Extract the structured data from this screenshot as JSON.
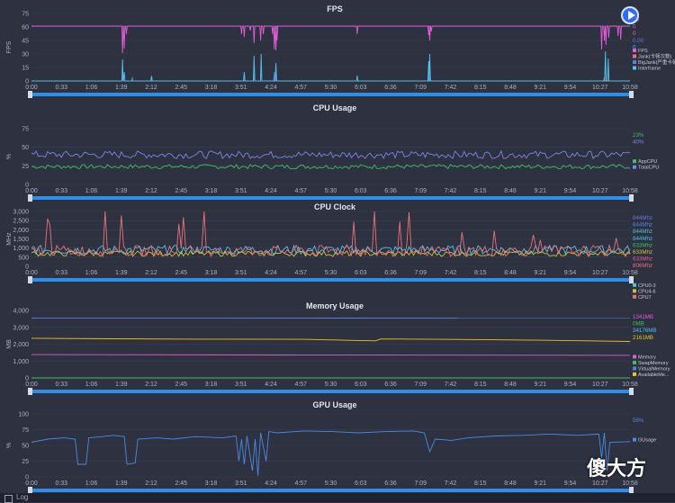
{
  "time_ticks": [
    "0:00",
    "0:33",
    "1:06",
    "1:39",
    "2:12",
    "2:45",
    "3:18",
    "3:51",
    "4:24",
    "4:57",
    "5:30",
    "6:03",
    "6:36",
    "7:09",
    "7:42",
    "8:15",
    "8:48",
    "9:21",
    "9:54",
    "10:27",
    "10:58"
  ],
  "footer": {
    "label": "Log"
  },
  "watermark": {
    "text": "傻大方"
  },
  "controls": {
    "play_icon": "play-icon"
  },
  "chart_data": [
    {
      "type": "line",
      "title": "FPS",
      "ylabel": "FPS",
      "ylim": [
        0,
        75
      ],
      "yticks": [
        0,
        15,
        30,
        45,
        60,
        75
      ],
      "legend_position": "right",
      "current_values": [
        {
          "text": "60",
          "color": "#e05cd6"
        },
        {
          "text": "0",
          "color": "#e05cd6"
        },
        {
          "text": "0",
          "color": "#e8737b"
        },
        {
          "text": "0.00",
          "color": "#5b7fe0"
        },
        {
          "text": "0",
          "color": "#4fc1e9"
        }
      ],
      "series": [
        {
          "name": "FPS",
          "color": "#e05cd6",
          "baseline": 61,
          "dips": [
            [
              1.67,
              31
            ],
            [
              1.7,
              36
            ],
            [
              1.74,
              52
            ],
            [
              3.85,
              52
            ],
            [
              3.9,
              49
            ],
            [
              4.01,
              56
            ],
            [
              4.08,
              42
            ],
            [
              4.2,
              45
            ],
            [
              4.25,
              52
            ],
            [
              4.42,
              52
            ],
            [
              4.45,
              35
            ],
            [
              4.48,
              34
            ],
            [
              4.5,
              45
            ],
            [
              5.97,
              52
            ],
            [
              7.28,
              51
            ],
            [
              7.3,
              45
            ],
            [
              7.33,
              55
            ],
            [
              10.45,
              35
            ],
            [
              10.5,
              45
            ],
            [
              10.53,
              40
            ],
            [
              10.58,
              48
            ],
            [
              10.75,
              50
            ],
            [
              10.8,
              46
            ]
          ]
        },
        {
          "name": "Jank(卡顿次数)",
          "color": "#e8737b",
          "baseline": 0,
          "spikes": [
            [
              1.67,
              4
            ],
            [
              4.08,
              3
            ],
            [
              4.45,
              3
            ],
            [
              7.3,
              3
            ],
            [
              10.5,
              4
            ]
          ]
        },
        {
          "name": "BigJank(严重卡顿)",
          "color": "#5b7fe0",
          "baseline": 0,
          "spikes": [
            [
              1.67,
              14
            ],
            [
              1.85,
              4
            ],
            [
              2.2,
              6
            ],
            [
              3.9,
              8
            ],
            [
              4.08,
              16
            ],
            [
              4.21,
              14
            ],
            [
              4.45,
              10
            ],
            [
              4.48,
              12
            ],
            [
              7.3,
              16
            ],
            [
              7.28,
              12
            ],
            [
              10.52,
              28
            ],
            [
              10.57,
              20
            ]
          ]
        },
        {
          "name": "Interframe",
          "color": "#4fc1e9",
          "baseline": 0,
          "spikes": [
            [
              1.67,
              24
            ],
            [
              1.7,
              10
            ],
            [
              2.2,
              5
            ],
            [
              3.9,
              10
            ],
            [
              4.08,
              28
            ],
            [
              4.21,
              30
            ],
            [
              4.48,
              20
            ],
            [
              5.97,
              6
            ],
            [
              7.3,
              30
            ],
            [
              7.28,
              22
            ],
            [
              10.52,
              33
            ],
            [
              10.57,
              25
            ]
          ]
        }
      ]
    },
    {
      "type": "line",
      "title": "CPU Usage",
      "ylabel": "%",
      "ylim": [
        0,
        75
      ],
      "yticks": [
        0,
        25,
        50,
        75
      ],
      "legend_position": "right",
      "current_values": [
        {
          "text": "23%",
          "color": "#3fbf5f"
        },
        {
          "text": "40%",
          "color": "#7c84e6"
        }
      ],
      "series": [
        {
          "name": "AppCPU",
          "color": "#3fbf5f",
          "baseline": 24,
          "noise": 3
        },
        {
          "name": "TotalCPU",
          "color": "#7c84e6",
          "baseline": 40,
          "noise": 5
        }
      ]
    },
    {
      "type": "line",
      "title": "CPU Clock",
      "ylabel": "MHz",
      "ylim": [
        0,
        3000
      ],
      "yticks": [
        0,
        500,
        1000,
        1500,
        2000,
        2500,
        3000
      ],
      "legend_position": "right",
      "current_values": [
        {
          "text": "844Mhz",
          "color": "#5b7fe0"
        },
        {
          "text": "844Mhz",
          "color": "#5b7fe0"
        },
        {
          "text": "844Mhz",
          "color": "#4fc1e9"
        },
        {
          "text": "844Mhz",
          "color": "#4fc1e9"
        },
        {
          "text": "633Mhz",
          "color": "#3fbf5f"
        },
        {
          "text": "633Mhz",
          "color": "#d0c040"
        },
        {
          "text": "633Mhz",
          "color": "#e05c9c"
        },
        {
          "text": "806Mhz",
          "color": "#e8737b"
        }
      ],
      "series": [
        {
          "name": "CPU0-3",
          "color": "#4fc1e9",
          "baseline": 900,
          "noise": 250
        },
        {
          "name": "CPU4-6",
          "color": "#d0c040",
          "baseline": 700,
          "noise": 150
        },
        {
          "name": "CPU7",
          "color": "#e8737b",
          "baseline": 850,
          "noise": 300,
          "spiky": true
        }
      ]
    },
    {
      "type": "line",
      "title": "Memory Usage",
      "ylabel": "MB",
      "ylim": [
        0,
        4000
      ],
      "yticks": [
        0,
        1000,
        2000,
        3000,
        4000
      ],
      "legend_position": "right",
      "current_values": [
        {
          "text": "1341MB",
          "color": "#e05cd6"
        },
        {
          "text": "0MB",
          "color": "#3fbf5f"
        },
        {
          "text": "34176MB",
          "color": "#4fc1e9"
        },
        {
          "text": "2161MB",
          "color": "#f0c020"
        }
      ],
      "series": [
        {
          "name": "Memory",
          "color": "#e05cd6",
          "points": [
            [
              0,
              1380
            ],
            [
              10.97,
              1341
            ]
          ]
        },
        {
          "name": "SwapMemory",
          "color": "#3fbf5f",
          "points": [
            [
              0,
              0
            ],
            [
              10.97,
              0
            ]
          ]
        },
        {
          "name": "VirtualMemory",
          "color": "#5b7fe0",
          "points": [
            [
              0,
              3550
            ],
            [
              10.97,
              3540
            ]
          ]
        },
        {
          "name": "AvailableMe...",
          "color": "#f0c020",
          "points": [
            [
              0,
              2350
            ],
            [
              1.5,
              2320
            ],
            [
              3,
              2300
            ],
            [
              5,
              2290
            ],
            [
              6.3,
              2200
            ],
            [
              6.4,
              2310
            ],
            [
              8,
              2280
            ],
            [
              9.5,
              2230
            ],
            [
              10.97,
              2161
            ]
          ]
        }
      ]
    },
    {
      "type": "line",
      "title": "GPU Usage",
      "ylabel": "%",
      "ylim": [
        0,
        100
      ],
      "yticks": [
        0,
        25,
        50,
        75,
        100
      ],
      "legend_position": "right",
      "current_values": [
        {
          "text": "56%",
          "color": "#4a8ae0"
        }
      ],
      "series": [
        {
          "name": "GUsage",
          "color": "#4a8ae0",
          "points": [
            [
              0,
              55
            ],
            [
              0.3,
              60
            ],
            [
              0.6,
              62
            ],
            [
              0.8,
              60
            ],
            [
              0.85,
              20
            ],
            [
              1.0,
              20
            ],
            [
              1.05,
              62
            ],
            [
              1.3,
              64
            ],
            [
              1.5,
              66
            ],
            [
              1.7,
              64
            ],
            [
              1.75,
              20
            ],
            [
              1.9,
              22
            ],
            [
              1.95,
              60
            ],
            [
              2.3,
              62
            ],
            [
              2.6,
              60
            ],
            [
              3.0,
              64
            ],
            [
              3.5,
              62
            ],
            [
              3.75,
              65
            ],
            [
              3.8,
              25
            ],
            [
              3.85,
              60
            ],
            [
              3.9,
              20
            ],
            [
              3.95,
              65
            ],
            [
              4.05,
              10
            ],
            [
              4.1,
              60
            ],
            [
              4.15,
              2
            ],
            [
              4.2,
              70
            ],
            [
              4.3,
              25
            ],
            [
              4.35,
              72
            ],
            [
              4.5,
              70
            ],
            [
              5.0,
              73
            ],
            [
              5.5,
              72
            ],
            [
              6.0,
              70
            ],
            [
              6.5,
              72
            ],
            [
              7.0,
              73
            ],
            [
              7.2,
              70
            ],
            [
              7.3,
              40
            ],
            [
              7.4,
              60
            ],
            [
              7.7,
              58
            ],
            [
              8.0,
              62
            ],
            [
              8.5,
              65
            ],
            [
              9.0,
              66
            ],
            [
              9.5,
              68
            ],
            [
              10.0,
              66
            ],
            [
              10.4,
              68
            ],
            [
              10.45,
              30
            ],
            [
              10.5,
              70
            ],
            [
              10.55,
              10
            ],
            [
              10.6,
              55
            ],
            [
              10.97,
              56
            ]
          ]
        }
      ]
    }
  ]
}
